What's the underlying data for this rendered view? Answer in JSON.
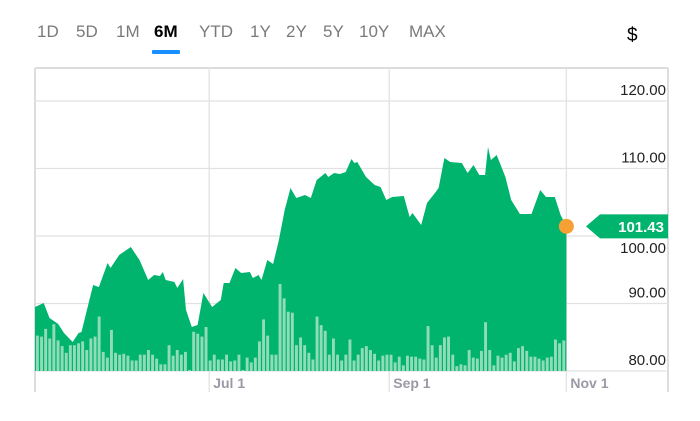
{
  "range_tabs": [
    {
      "label": "1D",
      "active": false
    },
    {
      "label": "5D",
      "active": false
    },
    {
      "label": "1M",
      "active": false
    },
    {
      "label": "6M",
      "active": true
    },
    {
      "label": "YTD",
      "active": false
    },
    {
      "label": "1Y",
      "active": false
    },
    {
      "label": "2Y",
      "active": false
    },
    {
      "label": "5Y",
      "active": false
    },
    {
      "label": "10Y",
      "active": false
    },
    {
      "label": "MAX",
      "active": false
    }
  ],
  "currency_label": "$",
  "colors": {
    "area": "#00b46e",
    "volume": "#9fe0bf",
    "marker": "#f7a035",
    "badge": "#00b46e",
    "tab_underline": "#188fff",
    "grid": "#e2e2e2"
  },
  "chart_data": {
    "type": "area",
    "ylim": [
      80,
      120
    ],
    "yticks": [
      "80.00",
      "90.00",
      "100.00",
      "110.00",
      "120.00"
    ],
    "ytick_values": [
      80,
      90,
      100,
      110,
      120
    ],
    "xlim": [
      "May 2",
      "Dec 6"
    ],
    "xticks": [
      "Jul 1",
      "Sep 1",
      "Nov 1"
    ],
    "grid": true,
    "last_price": "101.43",
    "price": [
      [
        "May 2",
        89.48
      ],
      [
        "May 5",
        90.07
      ],
      [
        "May 7",
        87.85
      ],
      [
        "May 10",
        86.96
      ],
      [
        "May 12",
        85.63
      ],
      [
        "May 15",
        84.3
      ],
      [
        "May 17",
        85.63
      ],
      [
        "May 18",
        85.78
      ],
      [
        "May 22",
        92.74
      ],
      [
        "May 24",
        92.44
      ],
      [
        "May 27",
        96.0
      ],
      [
        "May 28",
        95.26
      ],
      [
        "May 31",
        97.19
      ],
      [
        "Jun 4",
        98.37
      ],
      [
        "Jun 7",
        96.44
      ],
      [
        "Jun 10",
        93.48
      ],
      [
        "Jun 12",
        94.22
      ],
      [
        "Jun 14",
        94.07
      ],
      [
        "Jun 15",
        94.67
      ],
      [
        "Jun 16",
        93.48
      ],
      [
        "Jun 19",
        93.19
      ],
      [
        "Jun 20",
        92.3
      ],
      [
        "Jun 22",
        93.63
      ],
      [
        "Jun 23",
        89.04
      ],
      [
        "Jun 25",
        86.52
      ],
      [
        "Jun 27",
        86.81
      ],
      [
        "Jun 29",
        91.56
      ],
      [
        "Jul 2",
        89.48
      ],
      [
        "Jul 5",
        90.52
      ],
      [
        "Jul 6",
        93.04
      ],
      [
        "Jul 8",
        93.04
      ],
      [
        "Jul 10",
        95.26
      ],
      [
        "Jul 12",
        94.52
      ],
      [
        "Jul 15",
        94.67
      ],
      [
        "Jul 16",
        93.78
      ],
      [
        "Jul 18",
        94.22
      ],
      [
        "Jul 19",
        93.48
      ],
      [
        "Jul 21",
        96.44
      ],
      [
        "Jul 23",
        95.85
      ],
      [
        "Jul 25",
        99.41
      ],
      [
        "Jul 27",
        103.85
      ],
      [
        "Jul 29",
        107.11
      ],
      [
        "Jul 31",
        105.63
      ],
      [
        "Aug 3",
        106.07
      ],
      [
        "Aug 5",
        105.63
      ],
      [
        "Aug 7",
        108.3
      ],
      [
        "Aug 10",
        109.33
      ],
      [
        "Aug 11",
        108.74
      ],
      [
        "Aug 13",
        109.33
      ],
      [
        "Aug 15",
        109.19
      ],
      [
        "Aug 17",
        109.48
      ],
      [
        "Aug 19",
        111.41
      ],
      [
        "Aug 20",
        110.81
      ],
      [
        "Aug 21",
        110.96
      ],
      [
        "Aug 24",
        108.74
      ],
      [
        "Aug 27",
        107.56
      ],
      [
        "Aug 29",
        107.26
      ],
      [
        "Aug 31",
        105.33
      ],
      [
        "Sep 2",
        105.78
      ],
      [
        "Sep 6",
        105.93
      ],
      [
        "Sep 8",
        102.81
      ],
      [
        "Sep 9",
        103.41
      ],
      [
        "Sep 12",
        101.63
      ],
      [
        "Sep 14",
        104.89
      ],
      [
        "Sep 17",
        106.52
      ],
      [
        "Sep 18",
        107.11
      ],
      [
        "Sep 20",
        111.56
      ],
      [
        "Sep 22",
        110.96
      ],
      [
        "Sep 26",
        110.81
      ],
      [
        "Sep 28",
        109.33
      ],
      [
        "Sep 30",
        110.52
      ],
      [
        "Oct 2",
        109.04
      ],
      [
        "Oct 4",
        109.04
      ],
      [
        "Oct 5",
        113.19
      ],
      [
        "Oct 6",
        111.26
      ],
      [
        "Oct 8",
        112.0
      ],
      [
        "Oct 11",
        108.74
      ],
      [
        "Oct 13",
        105.33
      ],
      [
        "Oct 16",
        103.26
      ],
      [
        "Oct 20",
        103.26
      ],
      [
        "Oct 23",
        106.81
      ],
      [
        "Oct 25",
        105.78
      ],
      [
        "Oct 28",
        105.78
      ],
      [
        "Oct 30",
        103.11
      ],
      [
        "Nov 1",
        101.43
      ]
    ],
    "volume_relative": [
      37,
      36,
      44,
      34,
      49,
      32,
      26,
      19,
      27,
      27,
      29,
      31,
      22,
      34,
      36,
      57,
      20,
      14,
      43,
      19,
      17,
      18,
      16,
      11,
      11,
      17,
      17,
      22,
      17,
      13,
      7,
      7,
      27,
      16,
      22,
      17,
      20,
      1,
      41,
      39,
      36,
      46,
      11,
      17,
      12,
      12,
      17,
      10,
      11,
      17,
      1,
      14,
      9,
      14,
      31,
      54,
      37,
      17,
      17,
      91,
      76,
      62,
      61,
      27,
      35,
      27,
      19,
      12,
      57,
      48,
      42,
      17,
      34,
      17,
      11,
      17,
      33,
      11,
      17,
      24,
      26,
      22,
      18,
      11,
      16,
      17,
      17,
      9,
      15,
      6,
      16,
      15,
      15,
      13,
      12,
      47,
      27,
      14,
      27,
      35,
      36,
      17,
      5,
      7,
      6,
      22,
      14,
      13,
      21,
      51,
      22,
      6,
      16,
      14,
      17,
      19,
      10,
      24,
      26,
      21,
      15,
      15,
      13,
      11,
      14,
      15,
      33,
      29,
      32
    ]
  }
}
